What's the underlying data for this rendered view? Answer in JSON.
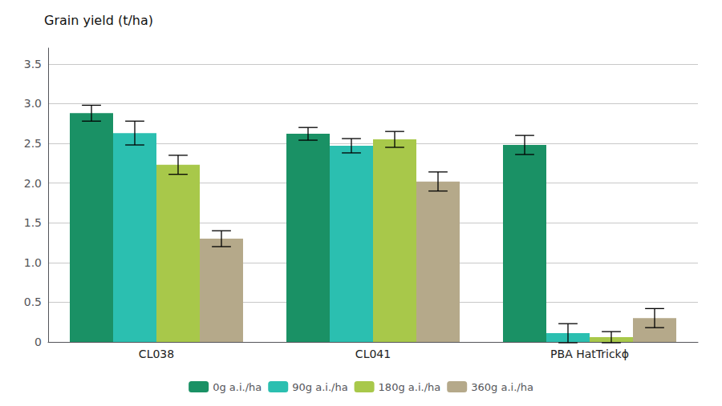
{
  "chart_data": {
    "type": "bar",
    "title": "Grain yield (t/ha)",
    "categories": [
      "CL038",
      "CL041",
      "PBA HatTrickϕ"
    ],
    "series": [
      {
        "name": "0g a.i./ha",
        "color": "#1a9165",
        "values": [
          2.88,
          2.62,
          2.48
        ],
        "errors": [
          0.1,
          0.08,
          0.12
        ]
      },
      {
        "name": "90g a.i./ha",
        "color": "#2bbfb0",
        "values": [
          2.63,
          2.47,
          0.11
        ],
        "errors": [
          0.15,
          0.09,
          0.12
        ]
      },
      {
        "name": "180g a.i./ha",
        "color": "#a8c84a",
        "values": [
          2.23,
          2.55,
          0.06
        ],
        "errors": [
          0.12,
          0.1,
          0.07
        ]
      },
      {
        "name": "360g a.i./ha",
        "color": "#b5a98a",
        "values": [
          1.3,
          2.02,
          0.3
        ],
        "errors": [
          0.1,
          0.12,
          0.12
        ]
      }
    ],
    "ylim": [
      0,
      3.7
    ],
    "yticks": [
      0,
      0.5,
      {
        "value": 1.0,
        "label": "1.0"
      },
      1.5,
      {
        "value": 2.0,
        "label": "2.0"
      },
      2.5,
      {
        "value": 3.0,
        "label": "3.0"
      },
      3.5
    ],
    "grid": true,
    "legend": "bottom"
  }
}
